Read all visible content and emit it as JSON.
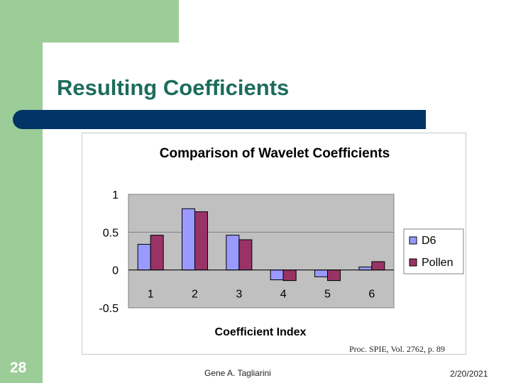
{
  "slide": {
    "title": "Resulting Coefficients",
    "caption": "Proc. SPIE, Vol. 2762, p. 89",
    "slide_number": "28",
    "author": "Gene A. Tagliarini",
    "date": "2/20/2021",
    "colors": {
      "green": "#9ccc98",
      "title_bar": "#003366",
      "title_text": "#1c6c5c"
    }
  },
  "chart_data": {
    "type": "bar",
    "title": "Comparison of Wavelet Coefficients",
    "xlabel": "Coefficient Index",
    "ylabel": "",
    "categories": [
      "1",
      "2",
      "3",
      "4",
      "5",
      "6"
    ],
    "series": [
      {
        "name": "D6",
        "color": "#9999ff",
        "values": [
          0.34,
          0.81,
          0.46,
          -0.13,
          -0.09,
          0.04
        ]
      },
      {
        "name": "Pollen",
        "color": "#993366",
        "values": [
          0.46,
          0.77,
          0.4,
          -0.14,
          -0.14,
          0.11
        ]
      }
    ],
    "ylim": [
      -0.5,
      1
    ],
    "yticks": [
      "1",
      "0.5",
      "0",
      "-0.5"
    ],
    "yticks_values": [
      1,
      0.5,
      0,
      -0.5
    ],
    "grid": true,
    "plot_background": "#c0c0c0",
    "legend": "right"
  }
}
